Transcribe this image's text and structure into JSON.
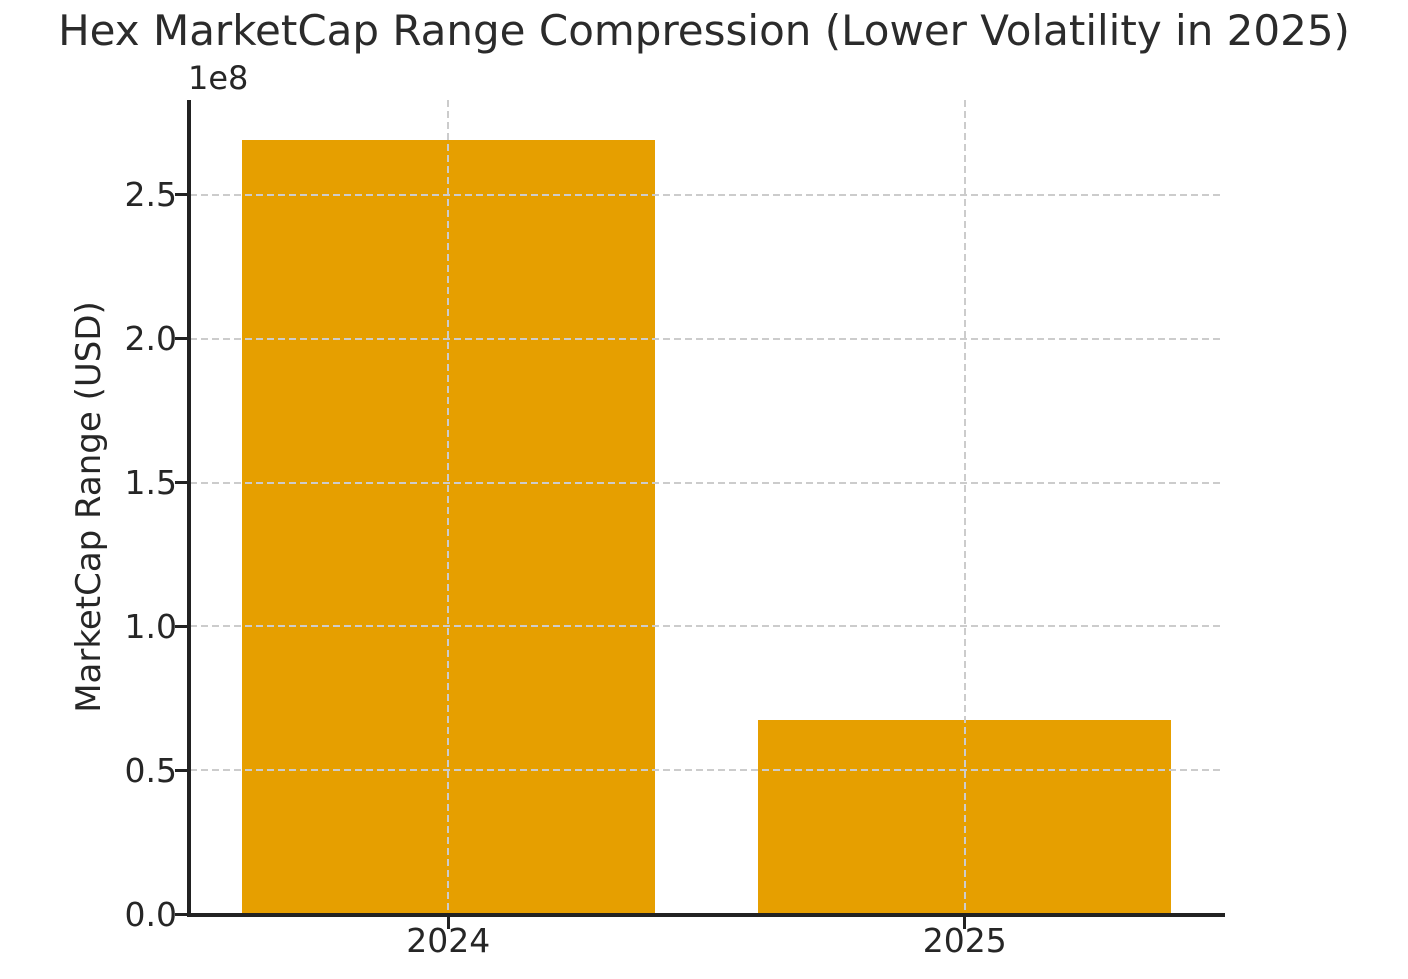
{
  "chart_data": {
    "type": "bar",
    "title": "Hex MarketCap Range Compression (Lower Volatility in 2025)",
    "categories": [
      "2024",
      "2025"
    ],
    "values": [
      269000000,
      67500000
    ],
    "series": [
      {
        "name": "MarketCap Range",
        "values": [
          269000000,
          67500000
        ]
      }
    ],
    "xlabel": "",
    "ylabel": "MarketCap Range (USD)",
    "y_offset_text": "1e8",
    "yticks": [
      0,
      50000000,
      100000000,
      150000000,
      200000000,
      250000000
    ],
    "ytick_labels": [
      "0.0",
      "0.5",
      "1.0",
      "1.5",
      "2.0",
      "2.5"
    ],
    "ylim": [
      0,
      283000000
    ],
    "bar_width_fraction": 0.8,
    "bar_color": "#E69F00",
    "grid": true,
    "grid_style": "dashed",
    "grid_color": "#cccccc",
    "grid_on_top_of_bars": true,
    "legend_position": "none",
    "spine_color": "#222222",
    "text_color": "#262626",
    "background_color": "#ffffff"
  }
}
